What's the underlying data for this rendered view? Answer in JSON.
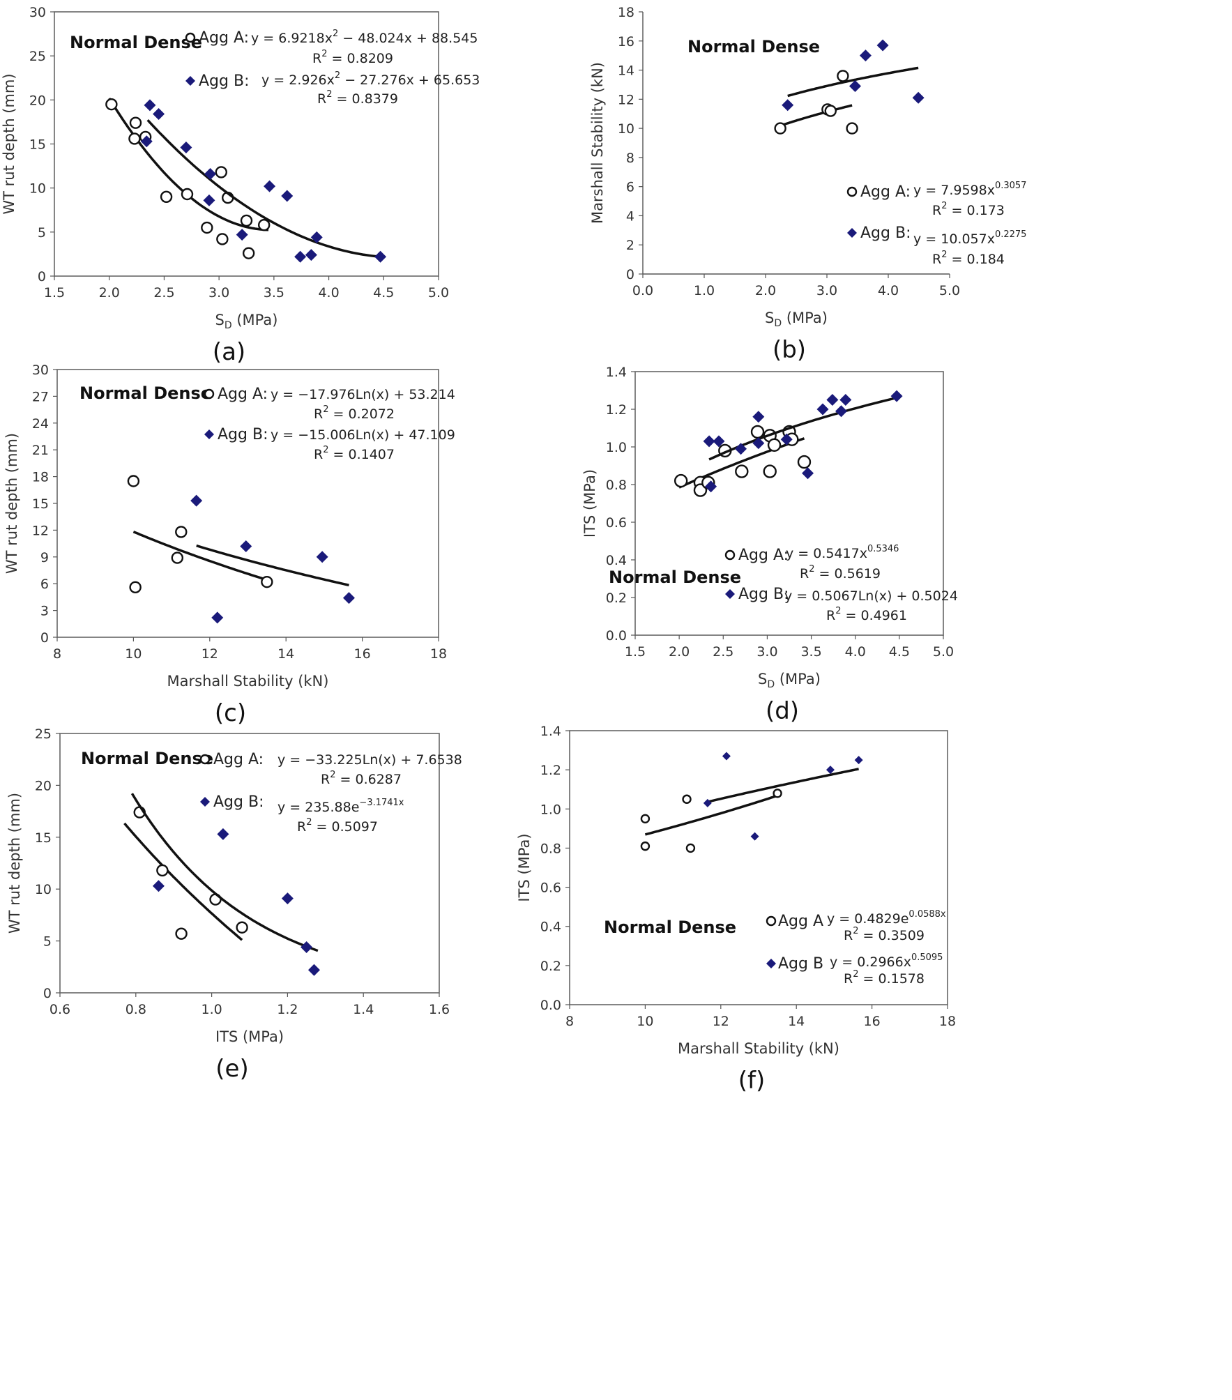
{
  "figure": {
    "marker_color_b": "#1a1a7a",
    "line_color": "#111111"
  },
  "chart_data": [
    {
      "id": "a",
      "panel_label": "(a)",
      "type": "scatter",
      "title": "Normal Dense",
      "xlabel_main": "S",
      "xlabel_sub": "D",
      "xlabel_rest": " (MPa)",
      "ylabel": "WT rut depth (mm)",
      "xlim": [
        1.5,
        5.0
      ],
      "ylim": [
        0,
        30
      ],
      "xticks": [
        1.5,
        2.0,
        2.5,
        3.0,
        3.5,
        4.0,
        4.5,
        5.0
      ],
      "xtick_labels": [
        "1.5",
        "2.0",
        "2.5",
        "3.0",
        "3.5",
        "4.0",
        "4.5",
        "5.0"
      ],
      "yticks": [
        0,
        5,
        10,
        15,
        20,
        25,
        30
      ],
      "ytick_labels": [
        "0",
        "5",
        "10",
        "15",
        "20",
        "25",
        "30"
      ],
      "series": [
        {
          "name": "Agg A",
          "legend": "Agg A:",
          "equation": {
            "pre": "y = 6.9218x",
            "exp": "2",
            "post": " − 48.024x + 88.545"
          },
          "r2": {
            "pre": "R",
            "exp": "2",
            "post": " = 0.8209"
          },
          "points": [
            [
              2.02,
              19.5
            ],
            [
              2.24,
              17.4
            ],
            [
              2.23,
              15.6
            ],
            [
              2.33,
              15.8
            ],
            [
              2.52,
              9.0
            ],
            [
              2.71,
              9.3
            ],
            [
              2.89,
              5.5
            ],
            [
              3.02,
              11.8
            ],
            [
              3.08,
              8.9
            ],
            [
              3.03,
              4.2
            ],
            [
              3.25,
              6.3
            ],
            [
              3.27,
              2.6
            ],
            [
              3.41,
              5.8
            ]
          ],
          "fit": {
            "kind": "poly2",
            "a": 6.9218,
            "b": -48.024,
            "c": 88.545,
            "x_range": [
              2.0,
              3.45
            ]
          }
        },
        {
          "name": "Agg B",
          "legend": "Agg B:",
          "equation": {
            "pre": "y = 2.926x",
            "exp": "2",
            "post": " − 27.276x + 65.653"
          },
          "r2": {
            "pre": "R",
            "exp": "2",
            "post": " = 0.8379"
          },
          "points": [
            [
              2.37,
              19.4
            ],
            [
              2.45,
              18.4
            ],
            [
              2.34,
              15.3
            ],
            [
              2.7,
              14.6
            ],
            [
              2.92,
              11.6
            ],
            [
              2.91,
              8.6
            ],
            [
              3.21,
              4.7
            ],
            [
              3.46,
              10.2
            ],
            [
              3.62,
              9.1
            ],
            [
              3.74,
              2.2
            ],
            [
              3.84,
              2.4
            ],
            [
              3.89,
              4.4
            ],
            [
              4.47,
              2.2
            ]
          ],
          "fit": {
            "kind": "poly2",
            "a": 2.926,
            "b": -27.276,
            "c": 65.653,
            "x_range": [
              2.35,
              4.45
            ]
          }
        }
      ]
    },
    {
      "id": "b",
      "panel_label": "(b)",
      "type": "scatter",
      "title": "Normal Dense",
      "xlabel_main": "S",
      "xlabel_sub": "D",
      "xlabel_rest": " (MPa)",
      "ylabel": "Marshall Stability (kN)",
      "xlim": [
        0.0,
        5.0
      ],
      "ylim": [
        0,
        18
      ],
      "xticks": [
        0,
        1,
        2,
        3,
        4,
        5
      ],
      "xtick_labels": [
        "0.0",
        "1.0",
        "2.0",
        "3.0",
        "4.0",
        "5.0"
      ],
      "yticks": [
        0,
        2,
        4,
        6,
        8,
        10,
        12,
        14,
        16,
        18
      ],
      "ytick_labels": [
        "0",
        "2",
        "4",
        "6",
        "8",
        "10",
        "12",
        "14",
        "16",
        "18"
      ],
      "series": [
        {
          "name": "Agg A",
          "legend": "Agg A:",
          "equation": {
            "pre": "y = 7.9598x",
            "exp": "0.3057",
            "post": ""
          },
          "r2": {
            "pre": "R",
            "exp": "2",
            "post": " = 0.173"
          },
          "points": [
            [
              2.24,
              10.0
            ],
            [
              3.01,
              11.3
            ],
            [
              3.06,
              11.2
            ],
            [
              3.26,
              13.6
            ],
            [
              3.41,
              10.0
            ]
          ],
          "fit": {
            "kind": "power",
            "a": 7.9598,
            "b": 0.3057,
            "x_range": [
              2.24,
              3.41
            ]
          }
        },
        {
          "name": "Agg B",
          "legend": "Agg B:",
          "equation": {
            "pre": "y = 10.057x",
            "exp": "0.2275",
            "post": ""
          },
          "r2": {
            "pre": "R",
            "exp": "2",
            "post": " = 0.184"
          },
          "points": [
            [
              2.36,
              11.6
            ],
            [
              3.46,
              12.9
            ],
            [
              3.63,
              15.0
            ],
            [
              3.91,
              15.7
            ],
            [
              4.49,
              12.1
            ]
          ],
          "fit": {
            "kind": "power",
            "a": 10.057,
            "b": 0.2275,
            "x_range": [
              2.36,
              4.49
            ]
          }
        }
      ]
    },
    {
      "id": "c",
      "panel_label": "(c)",
      "type": "scatter",
      "title": "Normal Dense",
      "xlabel": "Marshall Stability (kN)",
      "ylabel": "WT rut depth (mm)",
      "xlim": [
        8,
        18
      ],
      "ylim": [
        0,
        30
      ],
      "xticks": [
        8,
        10,
        12,
        14,
        16,
        18
      ],
      "xtick_labels": [
        "8",
        "10",
        "12",
        "14",
        "16",
        "18"
      ],
      "yticks": [
        0,
        3,
        6,
        9,
        12,
        15,
        18,
        21,
        24,
        27,
        30
      ],
      "ytick_labels": [
        "0",
        "3",
        "6",
        "9",
        "12",
        "15",
        "18",
        "21",
        "24",
        "27",
        "30"
      ],
      "series": [
        {
          "name": "Agg A",
          "legend": "Agg A:",
          "equation": {
            "pre": "y = −17.976Ln(x) + 53.214",
            "exp": "",
            "post": ""
          },
          "r2": {
            "pre": "R",
            "exp": "2",
            "post": " = 0.2072"
          },
          "points": [
            [
              10.0,
              17.5
            ],
            [
              10.05,
              5.6
            ],
            [
              11.15,
              8.9
            ],
            [
              11.25,
              11.8
            ],
            [
              13.5,
              6.2
            ]
          ],
          "fit": {
            "kind": "log",
            "a": -17.976,
            "b": 53.214,
            "x_range": [
              10.0,
              13.5
            ]
          }
        },
        {
          "name": "Agg B",
          "legend": "Agg B:",
          "equation": {
            "pre": "y = −15.006Ln(x) + 47.109",
            "exp": "",
            "post": ""
          },
          "r2": {
            "pre": "R",
            "exp": "2",
            "post": " = 0.1407"
          },
          "points": [
            [
              11.65,
              15.3
            ],
            [
              12.2,
              2.2
            ],
            [
              12.95,
              10.2
            ],
            [
              14.95,
              9.0
            ],
            [
              15.65,
              4.4
            ]
          ],
          "fit": {
            "kind": "log",
            "a": -15.006,
            "b": 47.109,
            "x_range": [
              11.65,
              15.65
            ]
          }
        }
      ]
    },
    {
      "id": "d",
      "panel_label": "(d)",
      "type": "scatter",
      "title": "Normal Dense",
      "xlabel_main": "S",
      "xlabel_sub": "D",
      "xlabel_rest": " (MPa)",
      "ylabel": "ITS (MPa)",
      "xlim": [
        1.5,
        5.0
      ],
      "ylim": [
        0,
        1.4
      ],
      "xticks": [
        1.5,
        2.0,
        2.5,
        3.0,
        3.5,
        4.0,
        4.5,
        5.0
      ],
      "xtick_labels": [
        "1.5",
        "2.0",
        "2.5",
        "3.0",
        "3.5",
        "4.0",
        "4.5",
        "5.0"
      ],
      "yticks": [
        0,
        0.2,
        0.4,
        0.6,
        0.8,
        1.0,
        1.2,
        1.4
      ],
      "ytick_labels": [
        "0.0",
        "0.2",
        "0.4",
        "0.6",
        "0.8",
        "1.0",
        "1.2",
        "1.4"
      ],
      "series": [
        {
          "name": "Agg A",
          "legend": "Agg A:",
          "equation": {
            "pre": "y = 0.5417x",
            "exp": "0.5346",
            "post": ""
          },
          "r2": {
            "pre": "R",
            "exp": "2",
            "post": " = 0.5619"
          },
          "points": [
            [
              2.02,
              0.82
            ],
            [
              2.24,
              0.81
            ],
            [
              2.24,
              0.77
            ],
            [
              2.33,
              0.81
            ],
            [
              2.52,
              0.98
            ],
            [
              2.71,
              0.87
            ],
            [
              2.89,
              1.08
            ],
            [
              3.03,
              1.06
            ],
            [
              3.03,
              0.87
            ],
            [
              3.08,
              1.01
            ],
            [
              3.25,
              1.08
            ],
            [
              3.28,
              1.04
            ],
            [
              3.42,
              0.92
            ]
          ],
          "fit": {
            "kind": "power",
            "a": 0.5417,
            "b": 0.5346,
            "x_range": [
              2.0,
              3.42
            ]
          }
        },
        {
          "name": "Agg B",
          "legend": "Agg B:",
          "equation": {
            "pre": "y = 0.5067Ln(x) + 0.5024",
            "exp": "",
            "post": ""
          },
          "r2": {
            "pre": "R",
            "exp": "2",
            "post": " = 0.4961"
          },
          "points": [
            [
              2.34,
              1.03
            ],
            [
              2.45,
              1.03
            ],
            [
              2.36,
              0.79
            ],
            [
              2.7,
              0.99
            ],
            [
              2.9,
              1.16
            ],
            [
              2.9,
              1.02
            ],
            [
              3.22,
              1.04
            ],
            [
              3.46,
              0.86
            ],
            [
              3.63,
              1.2
            ],
            [
              3.74,
              1.25
            ],
            [
              3.84,
              1.19
            ],
            [
              3.89,
              1.25
            ],
            [
              4.47,
              1.27
            ]
          ],
          "fit": {
            "kind": "log",
            "a": 0.5067,
            "b": 0.5024,
            "x_range": [
              2.34,
              4.47
            ]
          }
        }
      ]
    },
    {
      "id": "e",
      "panel_label": "(e)",
      "type": "scatter",
      "title": "Normal Dense",
      "xlabel": "ITS (MPa)",
      "ylabel": "WT rut depth (mm)",
      "xlim": [
        0.6,
        1.6
      ],
      "ylim": [
        0,
        25
      ],
      "xticks": [
        0.6,
        0.8,
        1.0,
        1.2,
        1.4,
        1.6
      ],
      "xtick_labels": [
        "0.6",
        "0.8",
        "1.0",
        "1.2",
        "1.4",
        "1.6"
      ],
      "yticks": [
        0,
        5,
        10,
        15,
        20,
        25
      ],
      "ytick_labels": [
        "0",
        "5",
        "10",
        "15",
        "20",
        "25"
      ],
      "series": [
        {
          "name": "Agg A",
          "legend": "Agg A:",
          "equation": {
            "pre": "y = −33.225Ln(x) + 7.6538",
            "exp": "",
            "post": ""
          },
          "r2": {
            "pre": "R",
            "exp": "2",
            "post": " = 0.6287"
          },
          "points": [
            [
              0.81,
              17.4
            ],
            [
              0.87,
              11.8
            ],
            [
              0.92,
              5.7
            ],
            [
              1.01,
              9.0
            ],
            [
              1.08,
              6.3
            ]
          ],
          "fit": {
            "kind": "log",
            "a": -33.225,
            "b": 7.6538,
            "x_range": [
              0.77,
              1.08
            ]
          }
        },
        {
          "name": "Agg B",
          "legend": "Agg B:",
          "equation": {
            "pre": "y = 235.88e",
            "exp": "−3.1741x",
            "post": ""
          },
          "r2": {
            "pre": "R",
            "exp": "2",
            "post": " = 0.5097"
          },
          "points": [
            [
              0.86,
              10.3
            ],
            [
              1.03,
              15.3
            ],
            [
              1.2,
              9.1
            ],
            [
              1.25,
              4.4
            ],
            [
              1.27,
              2.2
            ]
          ],
          "fit": {
            "kind": "exp",
            "a": 235.88,
            "b": -3.1741,
            "x_range": [
              0.79,
              1.28
            ]
          }
        }
      ]
    },
    {
      "id": "f",
      "panel_label": "(f)",
      "type": "scatter",
      "title": "Normal Dense",
      "xlabel": "Marshall Stability (kN)",
      "ylabel": "ITS (MPa)",
      "xlim": [
        8,
        18
      ],
      "ylim": [
        0,
        1.4
      ],
      "xticks": [
        8,
        10,
        12,
        14,
        16,
        18
      ],
      "xtick_labels": [
        "8",
        "10",
        "12",
        "14",
        "16",
        "18"
      ],
      "yticks": [
        0,
        0.2,
        0.4,
        0.6,
        0.8,
        1.0,
        1.2,
        1.4
      ],
      "ytick_labels": [
        "0.0",
        "0.2",
        "0.4",
        "0.6",
        "0.8",
        "1.0",
        "1.2",
        "1.4"
      ],
      "series": [
        {
          "name": "Agg A",
          "legend": "Agg A",
          "equation": {
            "pre": "y = 0.4829e",
            "exp": "0.0588x",
            "post": ""
          },
          "r2": {
            "pre": "R",
            "exp": "2",
            "post": " = 0.3509"
          },
          "points": [
            [
              10.0,
              0.95
            ],
            [
              10.0,
              0.81
            ],
            [
              11.1,
              1.05
            ],
            [
              11.2,
              0.8
            ],
            [
              13.5,
              1.08
            ]
          ],
          "fit": {
            "kind": "exp",
            "a": 0.4829,
            "b": 0.0588,
            "x_range": [
              10.0,
              13.5
            ]
          }
        },
        {
          "name": "Agg B",
          "legend": "Agg B",
          "equation": {
            "pre": "y = 0.2966x",
            "exp": "0.5095",
            "post": ""
          },
          "r2": {
            "pre": "R",
            "exp": "2",
            "post": " = 0.1578"
          },
          "points": [
            [
              11.65,
              1.03
            ],
            [
              12.15,
              1.27
            ],
            [
              12.9,
              0.86
            ],
            [
              14.9,
              1.2
            ],
            [
              15.65,
              1.25
            ]
          ],
          "fit": {
            "kind": "power",
            "a": 0.2966,
            "b": 0.5095,
            "x_range": [
              11.65,
              15.65
            ]
          }
        }
      ]
    }
  ]
}
